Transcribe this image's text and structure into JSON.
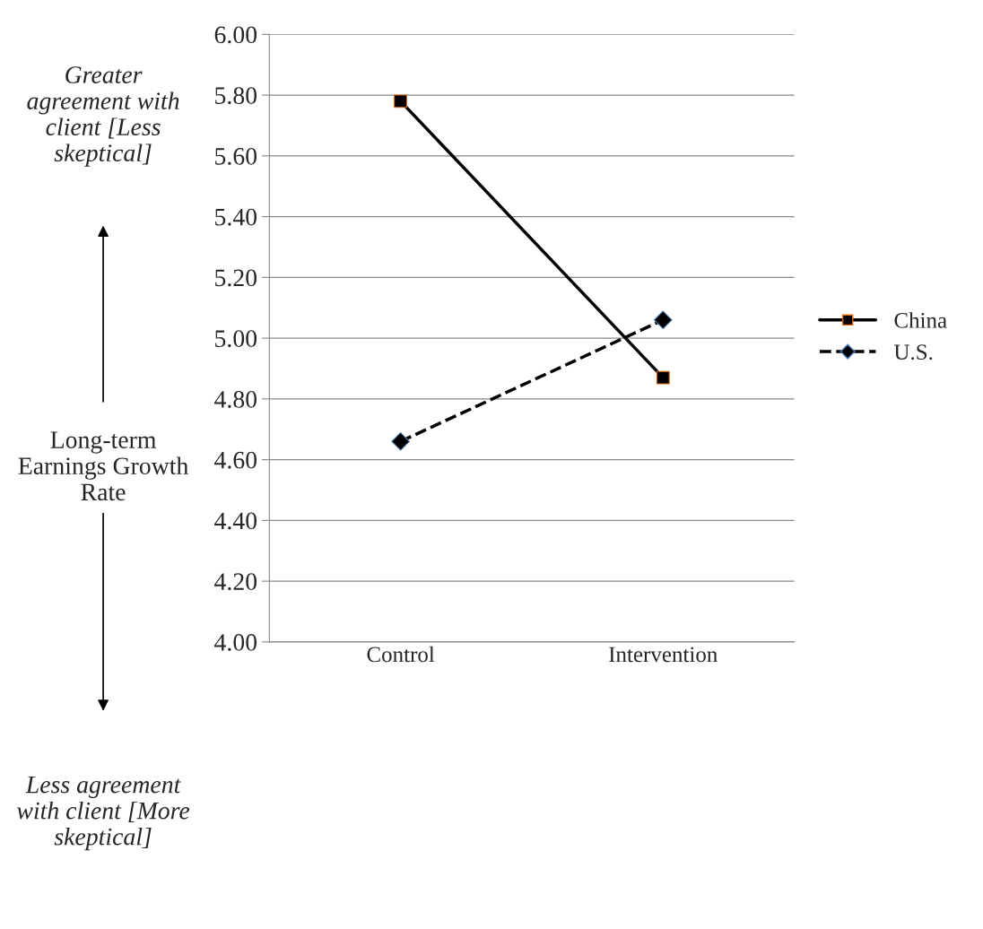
{
  "chart_data": {
    "type": "line",
    "ylabel": "Long-term Earnings Growth Rate",
    "categories": [
      "Control",
      "Intervention"
    ],
    "series": [
      {
        "name": "China",
        "color": "#000000",
        "values": [
          5.78,
          4.87
        ],
        "marker": "square",
        "line_style": "solid"
      },
      {
        "name": "U.S.",
        "color": "#000000",
        "values": [
          4.66,
          5.06
        ],
        "marker": "diamond",
        "line_style": "dashed"
      }
    ],
    "ylim": [
      4.0,
      6.0
    ],
    "yticks": [
      {
        "value": 4.0,
        "label": "4.00"
      },
      {
        "value": 4.2,
        "label": "4.20"
      },
      {
        "value": 4.4,
        "label": "4.40"
      },
      {
        "value": 4.6,
        "label": "4.60"
      },
      {
        "value": 4.8,
        "label": "4.80"
      },
      {
        "value": 5.0,
        "label": "5.00"
      },
      {
        "value": 5.2,
        "label": "5.20"
      },
      {
        "value": 5.4,
        "label": "5.40"
      },
      {
        "value": 5.6,
        "label": "5.60"
      },
      {
        "value": 5.8,
        "label": "5.80"
      },
      {
        "value": 6.0,
        "label": "6.00"
      }
    ],
    "grid": "y",
    "legend": "right",
    "annotations": [
      "Greater agreement with client [Less skeptical]",
      "Less agreement with client [More skeptical]"
    ]
  }
}
